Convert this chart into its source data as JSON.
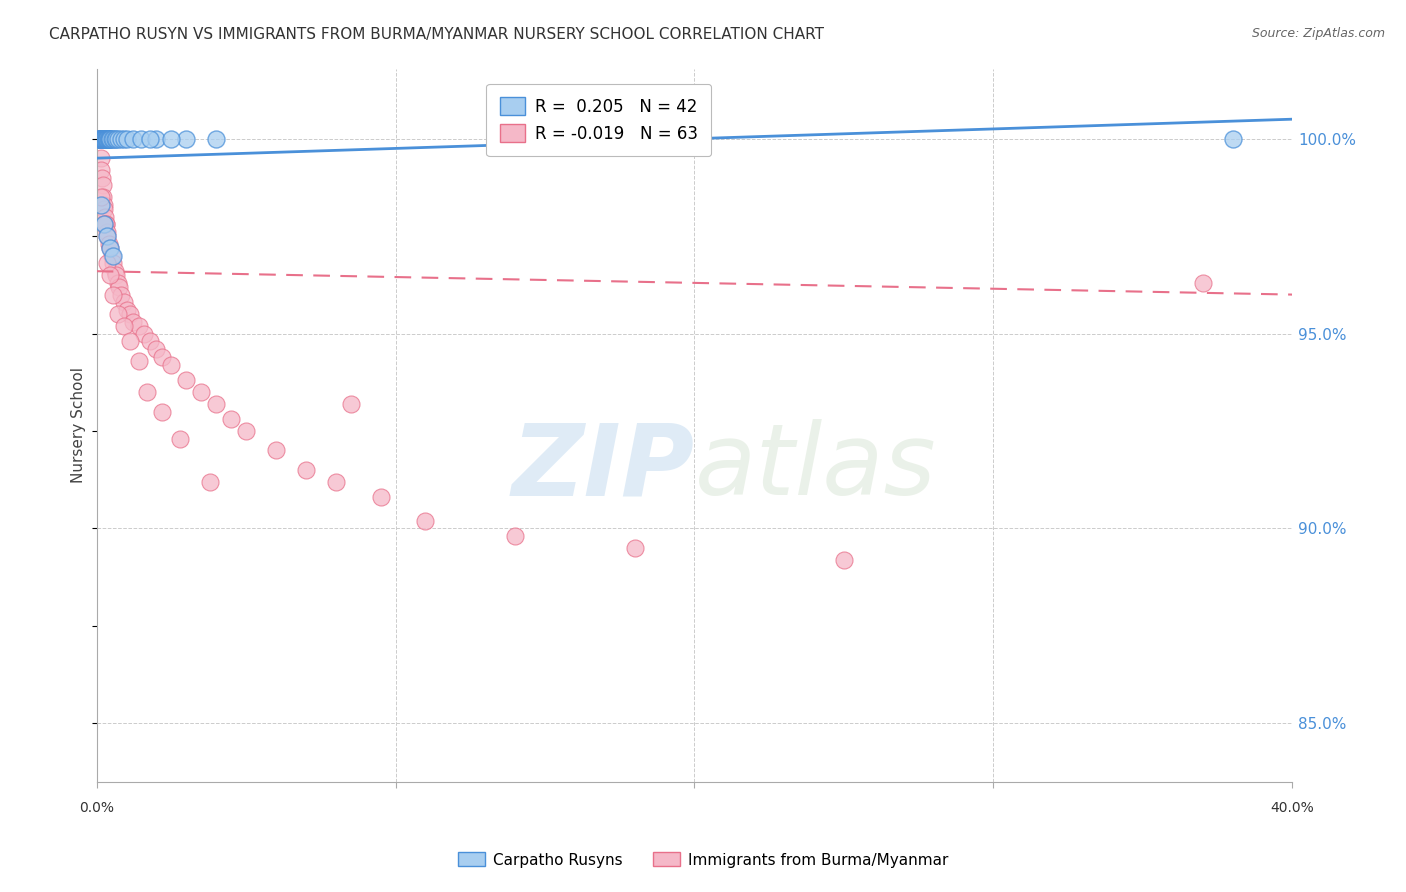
{
  "title": "CARPATHO RUSYN VS IMMIGRANTS FROM BURMA/MYANMAR NURSERY SCHOOL CORRELATION CHART",
  "source": "Source: ZipAtlas.com",
  "ylabel": "Nursery School",
  "xmin": 0.0,
  "xmax": 40.0,
  "ymin": 83.5,
  "ymax": 101.8,
  "yticks": [
    85.0,
    90.0,
    95.0,
    100.0
  ],
  "ytick_labels": [
    "85.0%",
    "90.0%",
    "95.0%",
    "100.0%"
  ],
  "legend_label_r1": "R =  0.205   N = 42",
  "legend_label_r2": "R = -0.019   N = 63",
  "legend_label_carpatho": "Carpatho Rusyns",
  "legend_label_burma": "Immigrants from Burma/Myanmar",
  "blue_color": "#4a90d9",
  "pink_color": "#e8708a",
  "blue_fill": "#a8cef0",
  "pink_fill": "#f5b8c8",
  "blue_scatter_x": [
    0.05,
    0.08,
    0.1,
    0.12,
    0.14,
    0.16,
    0.18,
    0.2,
    0.22,
    0.24,
    0.26,
    0.28,
    0.3,
    0.32,
    0.34,
    0.36,
    0.38,
    0.4,
    0.42,
    0.44,
    0.46,
    0.5,
    0.55,
    0.6,
    0.65,
    0.7,
    0.8,
    0.9,
    1.0,
    1.2,
    1.5,
    2.0,
    3.0,
    1.8,
    2.5,
    4.0,
    0.15,
    0.25,
    0.35,
    0.45,
    0.55,
    38.0
  ],
  "blue_scatter_y": [
    100.0,
    100.0,
    100.0,
    100.0,
    100.0,
    100.0,
    100.0,
    100.0,
    100.0,
    100.0,
    100.0,
    100.0,
    100.0,
    100.0,
    100.0,
    100.0,
    100.0,
    100.0,
    100.0,
    100.0,
    100.0,
    100.0,
    100.0,
    100.0,
    100.0,
    100.0,
    100.0,
    100.0,
    100.0,
    100.0,
    100.0,
    100.0,
    100.0,
    100.0,
    100.0,
    100.0,
    98.3,
    97.8,
    97.5,
    97.2,
    97.0,
    100.0
  ],
  "pink_scatter_x": [
    0.05,
    0.08,
    0.1,
    0.12,
    0.14,
    0.16,
    0.18,
    0.2,
    0.22,
    0.24,
    0.26,
    0.28,
    0.3,
    0.32,
    0.34,
    0.36,
    0.4,
    0.45,
    0.5,
    0.55,
    0.6,
    0.65,
    0.7,
    0.75,
    0.8,
    0.9,
    1.0,
    1.1,
    1.2,
    1.4,
    1.6,
    1.8,
    2.0,
    2.2,
    2.5,
    3.0,
    3.5,
    4.0,
    4.5,
    5.0,
    6.0,
    7.0,
    8.0,
    9.5,
    11.0,
    14.0,
    18.0,
    25.0,
    0.15,
    0.25,
    0.35,
    0.45,
    0.55,
    0.7,
    0.9,
    1.1,
    1.4,
    1.7,
    2.2,
    2.8,
    3.8,
    8.5,
    37.0
  ],
  "pink_scatter_y": [
    100.0,
    100.0,
    100.0,
    100.0,
    99.5,
    99.2,
    99.0,
    98.8,
    98.5,
    98.3,
    98.2,
    98.0,
    97.8,
    97.8,
    97.6,
    97.5,
    97.3,
    97.2,
    97.0,
    96.8,
    96.6,
    96.5,
    96.3,
    96.2,
    96.0,
    95.8,
    95.6,
    95.5,
    95.3,
    95.2,
    95.0,
    94.8,
    94.6,
    94.4,
    94.2,
    93.8,
    93.5,
    93.2,
    92.8,
    92.5,
    92.0,
    91.5,
    91.2,
    90.8,
    90.2,
    89.8,
    89.5,
    89.2,
    98.5,
    97.8,
    96.8,
    96.5,
    96.0,
    95.5,
    95.2,
    94.8,
    94.3,
    93.5,
    93.0,
    92.3,
    91.2,
    93.2,
    96.3
  ],
  "blue_line_x": [
    0.0,
    40.0
  ],
  "blue_line_y": [
    99.5,
    100.5
  ],
  "pink_line_x": [
    0.0,
    40.0
  ],
  "pink_line_y": [
    96.6,
    96.0
  ],
  "watermark_zip": "ZIP",
  "watermark_atlas": "atlas",
  "background_color": "#ffffff",
  "grid_color": "#cccccc"
}
